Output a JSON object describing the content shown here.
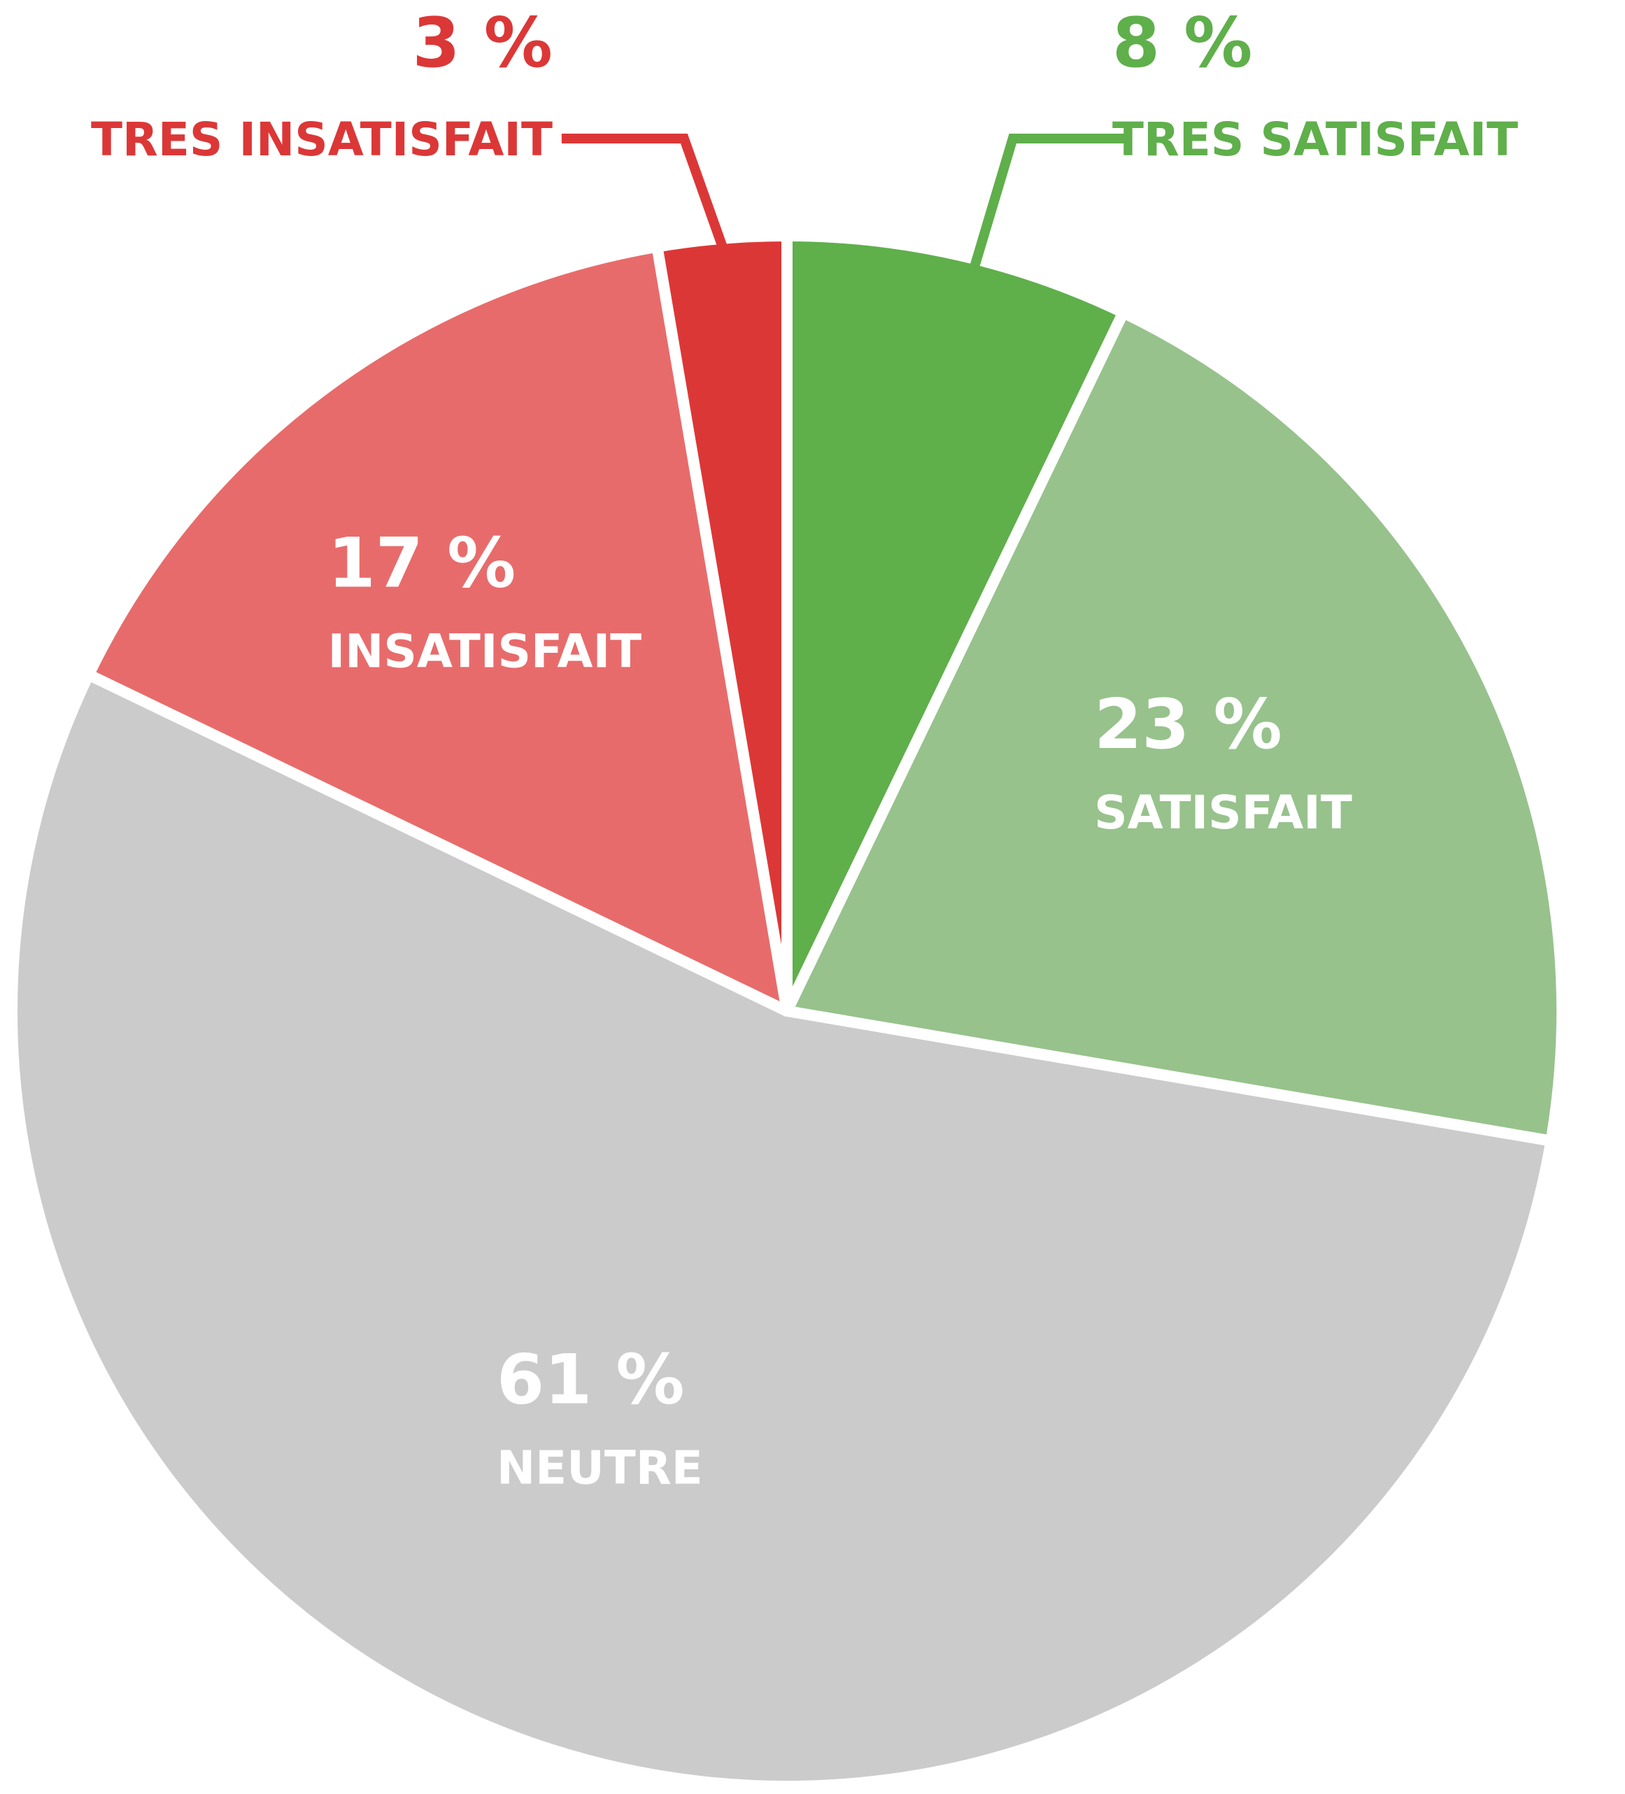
{
  "chart_data": {
    "type": "pie",
    "title": "",
    "slices": [
      {
        "label": "TRES SATISFAIT",
        "value": 8,
        "value_label": "8 %",
        "color": "#5faf4b",
        "label_color": "#5faf4b"
      },
      {
        "label": "SATISFAIT",
        "value": 23,
        "value_label": "23 %",
        "color": "#97c28c",
        "label_color": "#ffffff"
      },
      {
        "label": "NEUTRE",
        "value": 61,
        "value_label": "61 %",
        "color": "#cbcbcb",
        "label_color": "#ffffff"
      },
      {
        "label": "INSATISFAIT",
        "value": 17,
        "value_label": "17 %",
        "color": "#e86b6b",
        "label_color": "#ffffff"
      },
      {
        "label": "TRES INSATISFAIT",
        "value": 3,
        "value_label": "3 %",
        "color": "#dc3737",
        "label_color": "#dc3737"
      }
    ],
    "start_angle": "top",
    "direction": "clockwise",
    "legend": "none"
  }
}
